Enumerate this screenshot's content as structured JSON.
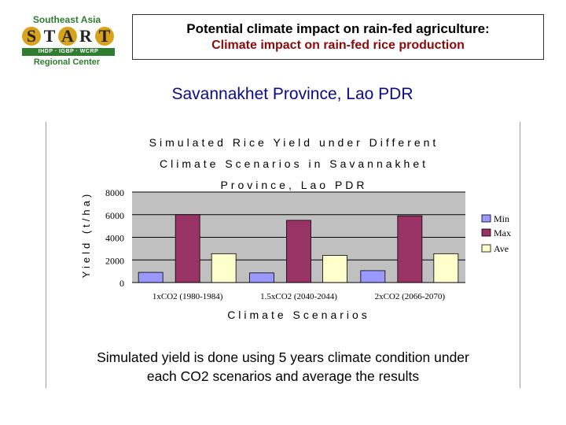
{
  "logo": {
    "top_text": "Southeast Asia",
    "letters": [
      "S",
      "T",
      "A",
      "R",
      "T"
    ],
    "programs": "IHDP · IGBP · WCRP",
    "bottom_text": "Regional Center",
    "colors": {
      "green": "#2f7d2f",
      "gold": "#d8a21c"
    }
  },
  "header": {
    "title": "Potential climate impact on rain-fed agriculture:",
    "subtitle": "Climate impact on rain-fed rice production"
  },
  "slide_subtitle": "Savannakhet Province, Lao PDR",
  "chart_data": {
    "type": "bar",
    "title": [
      "Simulated Rice Yield under Different",
      "Climate Scenarios in Savannakhet",
      "Province, Lao PDR"
    ],
    "xlabel": "Climate Scenarios",
    "ylabel": "Yield (t/ha)",
    "ylim": [
      0,
      8000
    ],
    "yticks": [
      "0",
      "2000",
      "4000",
      "6000",
      "8000"
    ],
    "categories": [
      "1xCO2 (1980-1984)",
      "1.5xCO2 (2040-2044)",
      "2xCO2 (2066-2070)"
    ],
    "series": [
      {
        "name": "Min",
        "color": "#9999ff",
        "values": [
          900,
          850,
          1050
        ]
      },
      {
        "name": "Max",
        "color": "#993366",
        "values": [
          6000,
          5500,
          5900
        ]
      },
      {
        "name": "Ave",
        "color": "#ffffcc",
        "values": [
          2550,
          2400,
          2550
        ]
      }
    ],
    "legend_position": "right"
  },
  "caption": {
    "line1": "Simulated yield is done using 5 years climate condition under",
    "line2": "each CO2 scenarios and average the results"
  }
}
